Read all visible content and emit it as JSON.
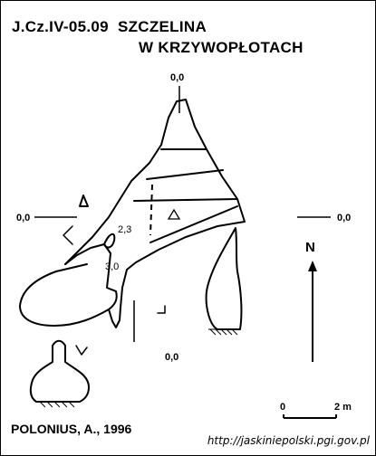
{
  "map": {
    "title_line1": "J.Cz.IV-05.09  SZCZELINA",
    "title_line2": "W KRZYWOPŁOTACH",
    "author": "POLONIUS, A., 1996",
    "url": "http://jaskiniepolski.pgi.gov.pl",
    "datum_labels": {
      "top": "0,0",
      "left": "0,0",
      "right": "0,0",
      "bottom": "0,0"
    },
    "depths": [
      "2,3",
      "3,0"
    ],
    "north_label": "N",
    "scale_bar": {
      "start_label": "0",
      "end_label": "2 m"
    }
  }
}
